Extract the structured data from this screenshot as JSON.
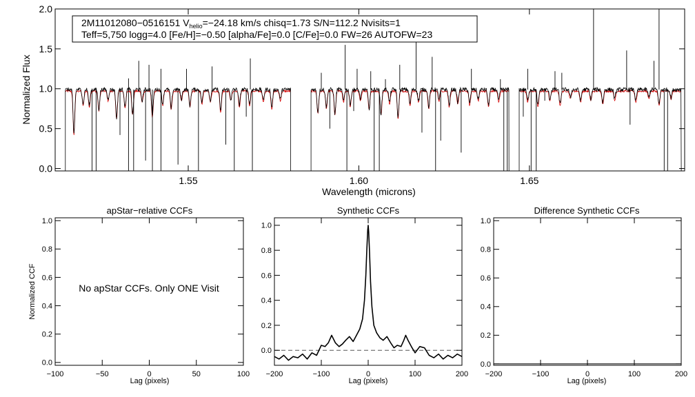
{
  "chart_data": [
    {
      "type": "line",
      "xlabel": "Wavelength (microns)",
      "ylabel": "Normalized Flux",
      "xlim": [
        1.511,
        1.6955
      ],
      "ylim": [
        -0.03,
        2.0
      ],
      "xticks": [
        1.55,
        1.6,
        1.65
      ],
      "xtick_labels": [
        "1.55",
        "1.60",
        "1.65"
      ],
      "yticks": [
        0.0,
        0.5,
        1.0,
        1.5,
        2.0
      ],
      "ytick_labels": [
        "0.0",
        "0.5",
        "1.0",
        "1.5",
        "2.0"
      ],
      "info_box": {
        "line1_pre": "2M11012080−0516151  V",
        "line1_sub": "helio",
        "line1_post": "=−24.18 km/s  chisq=1.73  S/N=112.2  Nvisits=1",
        "line2": "Teff=5,750 logg=4.0 [Fe/H]=−0.50 [alpha/Fe]=0.0 [C/Fe]=0.0 FW=26 AUTOFW=23"
      },
      "chips": [
        [
          1.514,
          1.58
        ],
        [
          1.586,
          1.644
        ],
        [
          1.647,
          1.6945
        ]
      ],
      "series": [
        {
          "color": "#000000",
          "role": "observed spectrum",
          "continuum": 0.99
        },
        {
          "color": "#d40000",
          "role": "synthetic model",
          "continuum": 0.97
        }
      ],
      "absorption_lines": [
        {
          "x": 1.5165,
          "depth": 0.55
        },
        {
          "x": 1.5192,
          "depth": 0.18
        },
        {
          "x": 1.521,
          "depth": 0.2
        },
        {
          "x": 1.5238,
          "depth": 0.25
        },
        {
          "x": 1.5265,
          "depth": 0.12
        },
        {
          "x": 1.529,
          "depth": 0.35
        },
        {
          "x": 1.5315,
          "depth": 0.22
        },
        {
          "x": 1.5337,
          "depth": 0.3
        },
        {
          "x": 1.5365,
          "depth": 0.14
        },
        {
          "x": 1.5395,
          "depth": 0.32
        },
        {
          "x": 1.5425,
          "depth": 0.18
        },
        {
          "x": 1.545,
          "depth": 0.24
        },
        {
          "x": 1.548,
          "depth": 0.12
        },
        {
          "x": 1.5505,
          "depth": 0.2
        },
        {
          "x": 1.554,
          "depth": 0.16
        },
        {
          "x": 1.5565,
          "depth": 0.14
        },
        {
          "x": 1.5595,
          "depth": 0.26
        },
        {
          "x": 1.5625,
          "depth": 0.12
        },
        {
          "x": 1.565,
          "depth": 0.2
        },
        {
          "x": 1.568,
          "depth": 0.18
        },
        {
          "x": 1.572,
          "depth": 0.14
        },
        {
          "x": 1.5745,
          "depth": 0.22
        },
        {
          "x": 1.577,
          "depth": 0.12
        },
        {
          "x": 1.588,
          "depth": 0.28
        },
        {
          "x": 1.5905,
          "depth": 0.22
        },
        {
          "x": 1.593,
          "depth": 0.3
        },
        {
          "x": 1.5955,
          "depth": 0.14
        },
        {
          "x": 1.5975,
          "depth": 0.2
        },
        {
          "x": 1.6005,
          "depth": 0.12
        },
        {
          "x": 1.603,
          "depth": 0.24
        },
        {
          "x": 1.6065,
          "depth": 0.3
        },
        {
          "x": 1.609,
          "depth": 0.16
        },
        {
          "x": 1.6115,
          "depth": 0.34
        },
        {
          "x": 1.615,
          "depth": 0.18
        },
        {
          "x": 1.6175,
          "depth": 0.14
        },
        {
          "x": 1.6205,
          "depth": 0.22
        },
        {
          "x": 1.6235,
          "depth": 0.12
        },
        {
          "x": 1.6265,
          "depth": 0.2
        },
        {
          "x": 1.629,
          "depth": 0.16
        },
        {
          "x": 1.6325,
          "depth": 0.18
        },
        {
          "x": 1.635,
          "depth": 0.12
        },
        {
          "x": 1.638,
          "depth": 0.2
        },
        {
          "x": 1.641,
          "depth": 0.14
        },
        {
          "x": 1.6495,
          "depth": 0.14
        },
        {
          "x": 1.6525,
          "depth": 0.2
        },
        {
          "x": 1.656,
          "depth": 0.12
        },
        {
          "x": 1.659,
          "depth": 0.18
        },
        {
          "x": 1.662,
          "depth": 0.1
        },
        {
          "x": 1.665,
          "depth": 0.14
        },
        {
          "x": 1.668,
          "depth": 0.12
        },
        {
          "x": 1.6715,
          "depth": 0.16
        },
        {
          "x": 1.675,
          "depth": 0.12
        },
        {
          "x": 1.6812,
          "depth": 0.14
        },
        {
          "x": 1.685,
          "depth": 0.1
        },
        {
          "x": 1.688,
          "depth": 0.18
        },
        {
          "x": 1.6915,
          "depth": 0.1
        }
      ],
      "spikes_up": [
        {
          "x": 1.5325,
          "y": 1.13
        },
        {
          "x": 1.5355,
          "y": 1.35
        },
        {
          "x": 1.5385,
          "y": 1.3
        },
        {
          "x": 1.542,
          "y": 1.25
        },
        {
          "x": 1.5495,
          "y": 1.25
        },
        {
          "x": 1.557,
          "y": 1.28
        },
        {
          "x": 1.5682,
          "y": 1.38
        },
        {
          "x": 1.589,
          "y": 1.2
        },
        {
          "x": 1.596,
          "y": 1.55
        },
        {
          "x": 1.5995,
          "y": 1.25
        },
        {
          "x": 1.6035,
          "y": 1.22
        },
        {
          "x": 1.6078,
          "y": 1.12
        },
        {
          "x": 1.612,
          "y": 1.3
        },
        {
          "x": 1.6168,
          "y": 1.9
        },
        {
          "x": 1.6215,
          "y": 1.4
        },
        {
          "x": 1.633,
          "y": 1.25
        },
        {
          "x": 1.6415,
          "y": 1.12
        },
        {
          "x": 1.6495,
          "y": 1.25
        },
        {
          "x": 1.6575,
          "y": 1.22
        },
        {
          "x": 1.6595,
          "y": 1.2
        },
        {
          "x": 1.6688,
          "y": 2.0
        },
        {
          "x": 1.6785,
          "y": 1.48
        },
        {
          "x": 1.6865,
          "y": 1.35
        },
        {
          "x": 1.688,
          "y": 2.0
        }
      ],
      "spikes_down": [
        {
          "x": 1.5218,
          "y": -0.03
        },
        {
          "x": 1.523,
          "y": -0.03
        },
        {
          "x": 1.53,
          "y": 0.42
        },
        {
          "x": 1.5325,
          "y": -0.03
        },
        {
          "x": 1.534,
          "y": -0.03
        },
        {
          "x": 1.5375,
          "y": 0.1
        },
        {
          "x": 1.5395,
          "y": -0.03
        },
        {
          "x": 1.542,
          "y": -0.03
        },
        {
          "x": 1.547,
          "y": 0.05
        },
        {
          "x": 1.553,
          "y": -0.03
        },
        {
          "x": 1.561,
          "y": 0.3
        },
        {
          "x": 1.5635,
          "y": -0.03
        },
        {
          "x": 1.567,
          "y": 0.65
        },
        {
          "x": 1.5688,
          "y": -0.03
        },
        {
          "x": 1.5915,
          "y": 0.5
        },
        {
          "x": 1.5965,
          "y": -0.03
        },
        {
          "x": 1.5985,
          "y": 0.72
        },
        {
          "x": 1.6045,
          "y": -0.03
        },
        {
          "x": 1.606,
          "y": -0.03
        },
        {
          "x": 1.6185,
          "y": 0.45
        },
        {
          "x": 1.6225,
          "y": -0.03
        },
        {
          "x": 1.624,
          "y": 0.35
        },
        {
          "x": 1.63,
          "y": 0.2
        },
        {
          "x": 1.6425,
          "y": -0.03
        },
        {
          "x": 1.6435,
          "y": -0.03
        },
        {
          "x": 1.6482,
          "y": 0.65
        },
        {
          "x": 1.6505,
          "y": -0.03
        },
        {
          "x": 1.652,
          "y": -0.03
        },
        {
          "x": 1.6545,
          "y": 0.85
        },
        {
          "x": 1.6795,
          "y": 0.55
        },
        {
          "x": 1.6895,
          "y": -0.03
        },
        {
          "x": 1.6905,
          "y": -0.03
        }
      ]
    },
    {
      "type": "line",
      "title": "apStar−relative CCFs",
      "xlabel": "Lag (pixels)",
      "ylabel": "Normalized CCF",
      "xlim": [
        -100,
        100
      ],
      "ylim": [
        -0.02,
        1.02
      ],
      "xticks": [
        -100,
        -50,
        0,
        50,
        100
      ],
      "xtick_labels": [
        "−100",
        "−50",
        "0",
        "50",
        "100"
      ],
      "yticks": [
        0.0,
        0.2,
        0.4,
        0.6,
        0.8,
        1.0
      ],
      "ytick_labels": [
        "0.0",
        "0.2",
        "0.4",
        "0.6",
        "0.8",
        "1.0"
      ],
      "message": "No apStar CCFs.  Only ONE Visit",
      "series": []
    },
    {
      "type": "line",
      "title": "Synthetic CCFs",
      "xlabel": "Lag (pixels)",
      "xlim": [
        -200,
        200
      ],
      "ylim": [
        -0.12,
        1.06
      ],
      "xticks": [
        -200,
        -100,
        0,
        100,
        200
      ],
      "xtick_labels": [
        "−200",
        "−100",
        "0",
        "100",
        "200"
      ],
      "yticks": [
        0.0,
        0.2,
        0.4,
        0.6,
        0.8,
        1.0
      ],
      "ytick_labels": [
        "0.0",
        "0.2",
        "0.4",
        "0.6",
        "0.8",
        "1.0"
      ],
      "zero_line": {
        "y": 0.0,
        "style": "dashed"
      },
      "series": [
        {
          "color": "#000000",
          "x": [
            -200,
            -190,
            -180,
            -170,
            -160,
            -150,
            -140,
            -130,
            -120,
            -110,
            -100,
            -92,
            -85,
            -78,
            -70,
            -62,
            -55,
            -48,
            -40,
            -32,
            -25,
            -18,
            -12,
            -8,
            -5,
            -3,
            -1,
            0,
            1,
            3,
            5,
            8,
            12,
            18,
            25,
            32,
            40,
            48,
            55,
            62,
            70,
            76,
            80,
            85,
            92,
            100,
            110,
            120,
            130,
            140,
            150,
            160,
            170,
            180,
            190,
            200
          ],
          "y": [
            -0.05,
            -0.07,
            -0.04,
            -0.08,
            -0.05,
            -0.06,
            -0.03,
            -0.07,
            -0.02,
            -0.04,
            0.04,
            0.03,
            0.06,
            0.12,
            0.06,
            0.03,
            0.05,
            0.08,
            0.11,
            0.07,
            0.12,
            0.17,
            0.25,
            0.4,
            0.6,
            0.8,
            0.96,
            1.0,
            0.95,
            0.78,
            0.55,
            0.35,
            0.2,
            0.14,
            0.1,
            0.08,
            0.11,
            0.06,
            0.02,
            0.04,
            0.03,
            0.08,
            0.12,
            0.08,
            0.03,
            -0.02,
            0.03,
            0.02,
            -0.04,
            -0.06,
            -0.03,
            -0.07,
            -0.04,
            -0.06,
            -0.03,
            -0.05
          ]
        }
      ]
    },
    {
      "type": "line",
      "title": "Difference Synthetic CCFs",
      "xlabel": "Lag (pixels)",
      "xlim": [
        -200,
        200
      ],
      "ylim": [
        -0.01,
        1.02
      ],
      "xticks": [
        -200,
        -100,
        0,
        100,
        200
      ],
      "xtick_labels": [
        "−200",
        "−100",
        "0",
        "100",
        "200"
      ],
      "yticks": [
        0.0,
        0.2,
        0.4,
        0.6,
        0.8,
        1.0
      ],
      "ytick_labels": [
        "0.0",
        "0.2",
        "0.4",
        "0.6",
        "0.8",
        "1.0"
      ],
      "series": [
        {
          "color": "#000000",
          "x": [
            -200,
            200
          ],
          "y": [
            0.0,
            0.0
          ]
        }
      ]
    }
  ]
}
